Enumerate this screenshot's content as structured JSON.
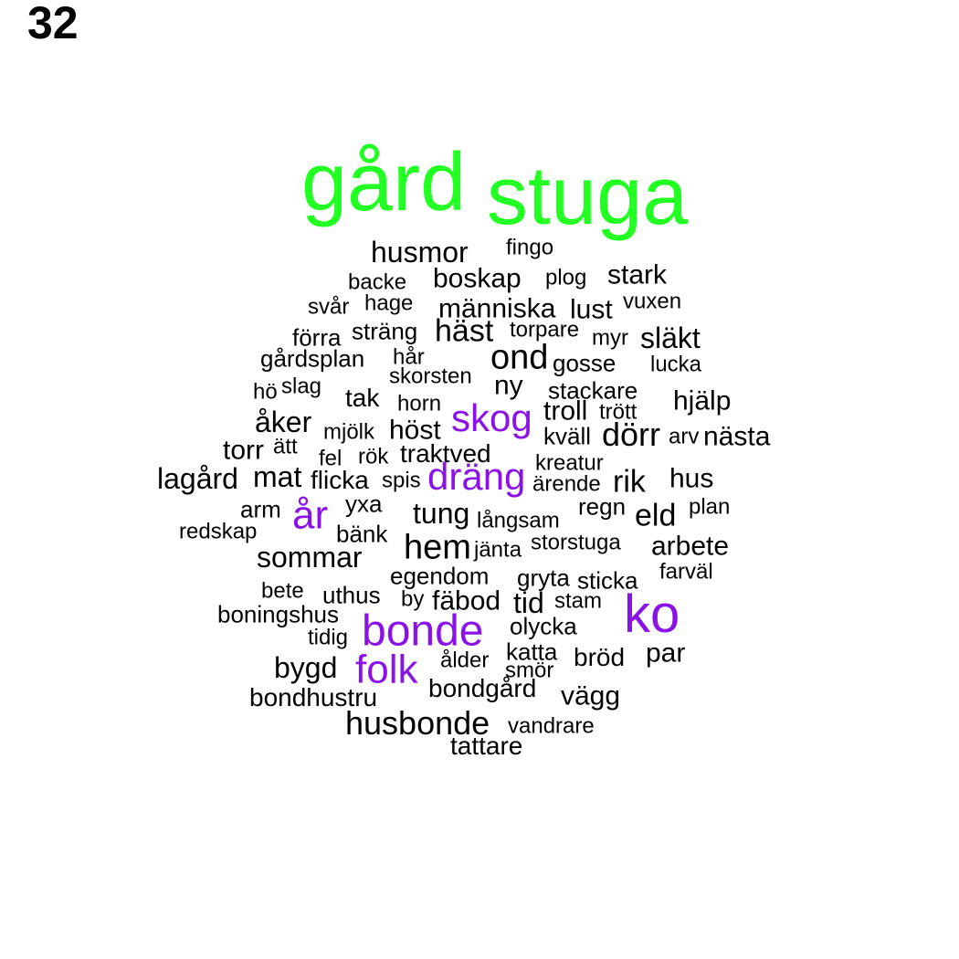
{
  "page_number": "32",
  "colors": {
    "green": "#22ff22",
    "purple": "#8a12e6",
    "black": "#000000"
  },
  "words": [
    {
      "text": "gård",
      "color": "green",
      "weight": 10
    },
    {
      "text": "stuga",
      "color": "green",
      "weight": 10
    },
    {
      "text": "husmor",
      "color": "black",
      "weight": 3
    },
    {
      "text": "fingo",
      "color": "black",
      "weight": 1
    },
    {
      "text": "backe",
      "color": "black",
      "weight": 1
    },
    {
      "text": "boskap",
      "color": "black",
      "weight": 3
    },
    {
      "text": "plog",
      "color": "black",
      "weight": 1
    },
    {
      "text": "stark",
      "color": "black",
      "weight": 3
    },
    {
      "text": "svår",
      "color": "black",
      "weight": 1
    },
    {
      "text": "hage",
      "color": "black",
      "weight": 1
    },
    {
      "text": "människa",
      "color": "black",
      "weight": 3
    },
    {
      "text": "lust",
      "color": "black",
      "weight": 3
    },
    {
      "text": "vuxen",
      "color": "black",
      "weight": 1
    },
    {
      "text": "förra",
      "color": "black",
      "weight": 2
    },
    {
      "text": "sträng",
      "color": "black",
      "weight": 2
    },
    {
      "text": "häst",
      "color": "black",
      "weight": 4
    },
    {
      "text": "torpare",
      "color": "black",
      "weight": 1
    },
    {
      "text": "myr",
      "color": "black",
      "weight": 1
    },
    {
      "text": "släkt",
      "color": "black",
      "weight": 3
    },
    {
      "text": "gårdsplan",
      "color": "black",
      "weight": 2
    },
    {
      "text": "hår",
      "color": "black",
      "weight": 1
    },
    {
      "text": "ond",
      "color": "black",
      "weight": 4
    },
    {
      "text": "gosse",
      "color": "black",
      "weight": 2
    },
    {
      "text": "lucka",
      "color": "black",
      "weight": 1
    },
    {
      "text": "skorsten",
      "color": "black",
      "weight": 1
    },
    {
      "text": "hö",
      "color": "black",
      "weight": 1
    },
    {
      "text": "slag",
      "color": "black",
      "weight": 1
    },
    {
      "text": "tak",
      "color": "black",
      "weight": 2
    },
    {
      "text": "ny",
      "color": "black",
      "weight": 3
    },
    {
      "text": "stackare",
      "color": "black",
      "weight": 2
    },
    {
      "text": "horn",
      "color": "black",
      "weight": 1
    },
    {
      "text": "troll",
      "color": "black",
      "weight": 3
    },
    {
      "text": "trött",
      "color": "black",
      "weight": 1
    },
    {
      "text": "hjälp",
      "color": "black",
      "weight": 3
    },
    {
      "text": "skog",
      "color": "purple",
      "weight": 6
    },
    {
      "text": "åker",
      "color": "black",
      "weight": 3
    },
    {
      "text": "mjölk",
      "color": "black",
      "weight": 1
    },
    {
      "text": "höst",
      "color": "black",
      "weight": 3
    },
    {
      "text": "kväll",
      "color": "black",
      "weight": 2
    },
    {
      "text": "dörr",
      "color": "black",
      "weight": 4
    },
    {
      "text": "arv",
      "color": "black",
      "weight": 1
    },
    {
      "text": "nästa",
      "color": "black",
      "weight": 3
    },
    {
      "text": "torr",
      "color": "black",
      "weight": 3
    },
    {
      "text": "ätt",
      "color": "black",
      "weight": 1
    },
    {
      "text": "fel",
      "color": "black",
      "weight": 1
    },
    {
      "text": "rök",
      "color": "black",
      "weight": 1
    },
    {
      "text": "traktved",
      "color": "black",
      "weight": 2
    },
    {
      "text": "kreatur",
      "color": "black",
      "weight": 1
    },
    {
      "text": "lagård",
      "color": "black",
      "weight": 3
    },
    {
      "text": "mat",
      "color": "black",
      "weight": 3
    },
    {
      "text": "flicka",
      "color": "black",
      "weight": 2
    },
    {
      "text": "spis",
      "color": "black",
      "weight": 1
    },
    {
      "text": "dräng",
      "color": "purple",
      "weight": 6
    },
    {
      "text": "ärende",
      "color": "black",
      "weight": 1
    },
    {
      "text": "rik",
      "color": "black",
      "weight": 3
    },
    {
      "text": "hus",
      "color": "black",
      "weight": 3
    },
    {
      "text": "arm",
      "color": "black",
      "weight": 2
    },
    {
      "text": "år",
      "color": "purple",
      "weight": 6
    },
    {
      "text": "yxa",
      "color": "black",
      "weight": 2
    },
    {
      "text": "tung",
      "color": "black",
      "weight": 3
    },
    {
      "text": "långsam",
      "color": "black",
      "weight": 1
    },
    {
      "text": "regn",
      "color": "black",
      "weight": 2
    },
    {
      "text": "eld",
      "color": "black",
      "weight": 3
    },
    {
      "text": "plan",
      "color": "black",
      "weight": 1
    },
    {
      "text": "redskap",
      "color": "black",
      "weight": 1
    },
    {
      "text": "bänk",
      "color": "black",
      "weight": 2
    },
    {
      "text": "hem",
      "color": "black",
      "weight": 4
    },
    {
      "text": "jänta",
      "color": "black",
      "weight": 1
    },
    {
      "text": "storstuga",
      "color": "black",
      "weight": 1
    },
    {
      "text": "arbete",
      "color": "black",
      "weight": 3
    },
    {
      "text": "sommar",
      "color": "black",
      "weight": 3
    },
    {
      "text": "egendom",
      "color": "black",
      "weight": 2
    },
    {
      "text": "gryta",
      "color": "black",
      "weight": 2
    },
    {
      "text": "sticka",
      "color": "black",
      "weight": 2
    },
    {
      "text": "farväl",
      "color": "black",
      "weight": 1
    },
    {
      "text": "bete",
      "color": "black",
      "weight": 1
    },
    {
      "text": "uthus",
      "color": "black",
      "weight": 2
    },
    {
      "text": "by",
      "color": "black",
      "weight": 1
    },
    {
      "text": "fäbod",
      "color": "black",
      "weight": 3
    },
    {
      "text": "tid",
      "color": "black",
      "weight": 3
    },
    {
      "text": "stam",
      "color": "black",
      "weight": 1
    },
    {
      "text": "ko",
      "color": "purple",
      "weight": 7
    },
    {
      "text": "boningshus",
      "color": "black",
      "weight": 2
    },
    {
      "text": "bonde",
      "color": "purple",
      "weight": 7
    },
    {
      "text": "olycka",
      "color": "black",
      "weight": 2
    },
    {
      "text": "tidig",
      "color": "black",
      "weight": 1
    },
    {
      "text": "katta",
      "color": "black",
      "weight": 2
    },
    {
      "text": "bröd",
      "color": "black",
      "weight": 2
    },
    {
      "text": "par",
      "color": "black",
      "weight": 3
    },
    {
      "text": "bygd",
      "color": "black",
      "weight": 3
    },
    {
      "text": "folk",
      "color": "purple",
      "weight": 6
    },
    {
      "text": "ålder",
      "color": "black",
      "weight": 1
    },
    {
      "text": "smör",
      "color": "black",
      "weight": 1
    },
    {
      "text": "bondgård",
      "color": "black",
      "weight": 2
    },
    {
      "text": "vägg",
      "color": "black",
      "weight": 3
    },
    {
      "text": "bondhustru",
      "color": "black",
      "weight": 2
    },
    {
      "text": "husbonde",
      "color": "black",
      "weight": 4
    },
    {
      "text": "vandrare",
      "color": "black",
      "weight": 1
    },
    {
      "text": "tattare",
      "color": "black",
      "weight": 2
    }
  ]
}
